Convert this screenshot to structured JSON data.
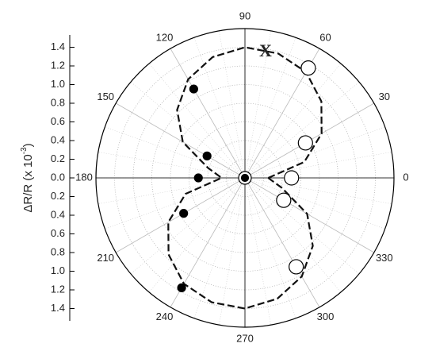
{
  "chart_data": {
    "type": "polar",
    "annotation": "X",
    "r_label": {
      "main": "ΔR/R (x 10",
      "sup": "-3",
      "end": ")"
    },
    "rlim": [
      0,
      1.6
    ],
    "rticks": [
      0.0,
      0.2,
      0.4,
      0.6,
      0.8,
      1.0,
      1.2,
      1.4
    ],
    "rtick_labels": [
      "0.0",
      "0.2",
      "0.4",
      "0.6",
      "0.8",
      "1.0",
      "1.2",
      "1.4"
    ],
    "thetaticks": [
      0,
      30,
      60,
      90,
      120,
      150,
      180,
      210,
      240,
      270,
      300,
      330
    ],
    "grid": true,
    "series": [
      {
        "name": "open",
        "color": "#ffffff",
        "theta": [
          0,
          30,
          60,
          300,
          330,
          0
        ],
        "r": [
          0.5,
          0.75,
          1.36,
          1.1,
          0.48,
          0.0
        ]
      },
      {
        "name": "filled",
        "color": "#000000",
        "theta": [
          120,
          150,
          180,
          210,
          240,
          0
        ],
        "r": [
          1.1,
          0.47,
          0.5,
          0.76,
          1.36,
          0.0
        ]
      }
    ],
    "fit": {
      "color": "#111111",
      "theta": [
        0,
        15,
        30,
        45,
        60,
        75,
        90,
        105,
        120,
        135,
        150,
        165,
        180,
        195,
        210,
        225,
        240,
        255,
        270,
        285,
        300,
        315,
        330,
        345,
        360
      ],
      "r": [
        0.25,
        0.66,
        0.95,
        1.16,
        1.31,
        1.38,
        1.4,
        1.34,
        1.22,
        1.03,
        0.77,
        0.41,
        0.25,
        0.66,
        0.95,
        1.16,
        1.31,
        1.38,
        1.4,
        1.34,
        1.22,
        1.03,
        0.77,
        0.41,
        0.25
      ]
    }
  }
}
